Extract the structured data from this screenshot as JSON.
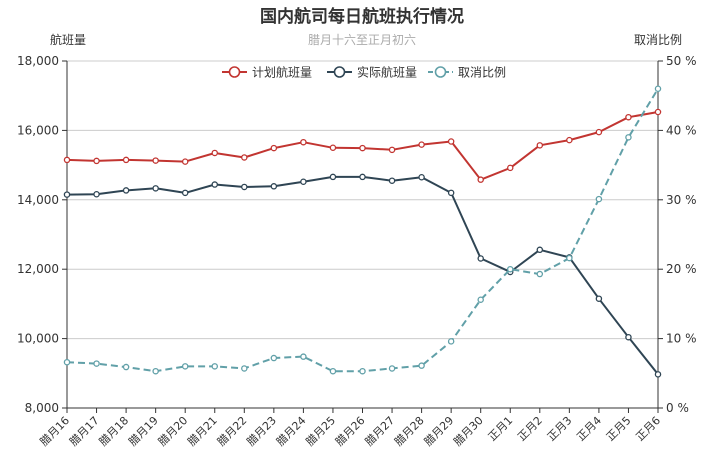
{
  "chart_data": {
    "type": "line",
    "title": "国内航司每日航班执行情况",
    "subtitle": "腊月十六至正月初六",
    "ylabel_left": "航班量",
    "ylabel_right": "取消比例",
    "ylim_left": [
      8000,
      18000
    ],
    "yticks_left": [
      "8,000",
      "10,000",
      "12,000",
      "14,000",
      "16,000",
      "18,000"
    ],
    "ylim_right": [
      0,
      50
    ],
    "yticks_right": [
      "0 %",
      "10 %",
      "20 %",
      "30 %",
      "40 %",
      "50 %"
    ],
    "grid": true,
    "legend_position": "top-center",
    "categories": [
      "腊月16",
      "腊月17",
      "腊月18",
      "腊月19",
      "腊月20",
      "腊月21",
      "腊月22",
      "腊月23",
      "腊月24",
      "腊月25",
      "腊月26",
      "腊月27",
      "腊月28",
      "腊月29",
      "腊月30",
      "正月1",
      "正月2",
      "正月3",
      "正月4",
      "正月5",
      "正月6"
    ],
    "series": [
      {
        "name": "计划航班量",
        "axis": "left",
        "color": "#c23531",
        "dashed": false,
        "values": [
          15150,
          15120,
          15150,
          15130,
          15100,
          15350,
          15220,
          15490,
          15660,
          15500,
          15490,
          15440,
          15590,
          15680,
          14580,
          14920,
          15570,
          15720,
          15950,
          16380,
          16530
        ]
      },
      {
        "name": "实际航班量",
        "axis": "left",
        "color": "#2f4554",
        "dashed": false,
        "values": [
          14150,
          14160,
          14270,
          14330,
          14200,
          14440,
          14370,
          14390,
          14520,
          14660,
          14660,
          14550,
          14650,
          14200,
          12310,
          11920,
          12560,
          12340,
          11150,
          10040,
          8970
        ]
      },
      {
        "name": "取消比例",
        "axis": "right",
        "color": "#61a0a8",
        "dashed": true,
        "values": [
          6.6,
          6.4,
          5.9,
          5.3,
          6.0,
          6.0,
          5.7,
          7.2,
          7.4,
          5.3,
          5.3,
          5.7,
          6.1,
          9.6,
          15.6,
          20.0,
          19.3,
          21.6,
          30.1,
          39.0,
          46.0
        ]
      }
    ]
  }
}
